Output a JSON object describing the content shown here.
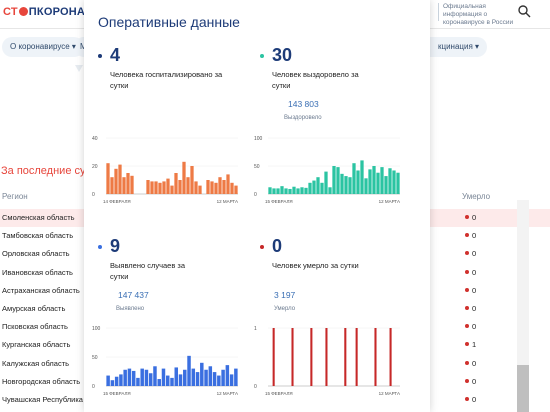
{
  "header": {
    "logo_left": "СТ",
    "logo_right": "ПКОРОНАВИ",
    "official_text": "Официальная информация о коронавирусе в России"
  },
  "nav": {
    "pill_about": "О коронавирусе ▾",
    "pill_m": "М",
    "pill_vacc": "кцинация ▾"
  },
  "page": {
    "last_days": "За последние сутк",
    "col_region": "Регион",
    "col_died": "Умерло"
  },
  "regions": [
    {
      "name": "Смоленская область",
      "died": "0"
    },
    {
      "name": "Тамбовская область",
      "died": "0"
    },
    {
      "name": "Орловская область",
      "died": "0"
    },
    {
      "name": "Ивановская область",
      "died": "0"
    },
    {
      "name": "Астраханская область",
      "died": "0"
    },
    {
      "name": "Амурская область",
      "died": "0"
    },
    {
      "name": "Псковская область",
      "died": "0"
    },
    {
      "name": "Курганская область",
      "died": "1"
    },
    {
      "name": "Калужская область",
      "died": "0"
    },
    {
      "name": "Новгородская область",
      "died": "0"
    },
    {
      "name": "Чувашская Республика",
      "died": "0"
    }
  ],
  "modal": {
    "title": "Оперативные данные",
    "stats": [
      {
        "num": "4",
        "desc": "Человека госпитализировано за сутки",
        "total": "",
        "total_label": "",
        "bullet": "#1d3b78"
      },
      {
        "num": "30",
        "desc": "Человек выздоровело за сутки",
        "total": "143 803",
        "total_label": "Выздоровело",
        "bullet": "#2bc4a2"
      },
      {
        "num": "9",
        "desc": "Выявлено случаев за сутки",
        "total": "147 437",
        "total_label": "Выявлено",
        "bullet": "#3a6fe0"
      },
      {
        "num": "0",
        "desc": "Человек умерло за сутки",
        "total": "3 197",
        "total_label": "Умерло",
        "bullet": "#c62828"
      }
    ]
  },
  "colors": {
    "orange": "#ee7a45",
    "teal": "#2bc4a2",
    "blue": "#3a6fe0",
    "red": "#c62828"
  },
  "chart_data": [
    {
      "type": "bar",
      "title": "",
      "ylim": [
        0,
        40
      ],
      "yticks": [
        "40",
        "20",
        "0"
      ],
      "x_start": "14 ФЕВРАЛЯ",
      "x_end": "12 МАРТА",
      "values": [
        22,
        12,
        18,
        21,
        12,
        15,
        13,
        0,
        0,
        0,
        10,
        9,
        9,
        8,
        9,
        11,
        6,
        15,
        10,
        23,
        12,
        20,
        9,
        6,
        0,
        10,
        9,
        8,
        12,
        10,
        14,
        8,
        6
      ]
    },
    {
      "type": "bar",
      "title": "",
      "ylim": [
        0,
        100
      ],
      "yticks": [
        "100",
        "50",
        "0"
      ],
      "x_start": "15 ФЕВРАЛЯ",
      "x_end": "12 МАРТА",
      "values": [
        12,
        10,
        10,
        14,
        10,
        9,
        13,
        10,
        12,
        11,
        20,
        24,
        30,
        20,
        40,
        12,
        50,
        48,
        36,
        32,
        30,
        55,
        42,
        60,
        28,
        44,
        50,
        38,
        48,
        32,
        46,
        42,
        38
      ]
    },
    {
      "type": "bar",
      "title": "",
      "ylim": [
        0,
        100
      ],
      "yticks": [
        "100",
        "50",
        "0"
      ],
      "x_start": "15 ФЕВРАЛЯ",
      "x_end": "12 МАРТА",
      "values": [
        18,
        10,
        16,
        20,
        28,
        30,
        26,
        14,
        30,
        28,
        22,
        34,
        12,
        30,
        18,
        14,
        32,
        20,
        28,
        52,
        30,
        24,
        40,
        28,
        34,
        24,
        18,
        28,
        36,
        20,
        30
      ]
    },
    {
      "type": "bar",
      "title": "",
      "ylim": [
        0,
        1
      ],
      "yticks": [
        "1",
        "0"
      ],
      "x_start": "15 ФЕВРАЛЯ",
      "x_end": "12 МАРТА",
      "values": [
        0,
        1,
        0,
        0,
        0,
        0,
        1,
        0,
        0,
        0,
        0,
        1,
        0,
        0,
        0,
        1,
        0,
        0,
        0,
        0,
        1,
        0,
        0,
        1,
        0,
        0,
        0,
        0,
        1,
        0,
        0,
        0,
        1,
        0,
        0
      ]
    }
  ]
}
